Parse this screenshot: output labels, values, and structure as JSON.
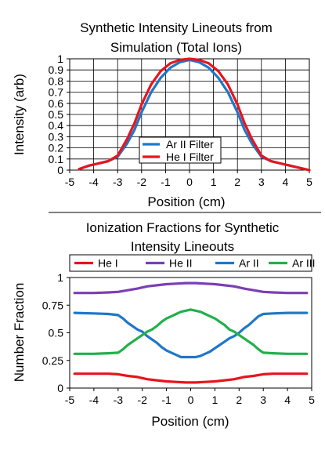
{
  "charts": [
    {
      "type": "line",
      "title_lines": [
        "Synthetic Intensity Lineouts from",
        "Simulation (Total Ions)"
      ],
      "xlabel": "Position (cm)",
      "ylabel": "Intensity (arb)",
      "xlim": [
        -5,
        5
      ],
      "ylim": [
        0,
        1
      ],
      "xticks": [
        "-5",
        "-4",
        "-3",
        "-2",
        "-1",
        "0",
        "1",
        "2",
        "3",
        "4",
        "5"
      ],
      "yticks": [
        "0",
        "0.1",
        "0.2",
        "0.3",
        "0.4",
        "0.5",
        "0.6",
        "0.7",
        "0.8",
        "0.9",
        "1"
      ],
      "grid": true,
      "legend_position": "lower-center",
      "series": [
        {
          "name": "Ar II Filter",
          "color": "#1f77c9",
          "x": [
            -4.6,
            -4.2,
            -3.8,
            -3.4,
            -3.0,
            -2.6,
            -2.3,
            -2.0,
            -1.6,
            -1.2,
            -0.8,
            -0.4,
            0.0,
            0.4,
            0.8,
            1.2,
            1.6,
            2.0,
            2.3,
            2.6,
            3.0,
            3.4,
            3.8,
            4.2,
            4.6,
            5.0
          ],
          "y": [
            0.01,
            0.04,
            0.06,
            0.08,
            0.12,
            0.24,
            0.36,
            0.52,
            0.7,
            0.83,
            0.92,
            0.97,
            0.99,
            0.97,
            0.92,
            0.83,
            0.7,
            0.52,
            0.36,
            0.24,
            0.12,
            0.08,
            0.06,
            0.04,
            0.02,
            0.0
          ]
        },
        {
          "name": "He I Filter",
          "color": "#e8141c",
          "x": [
            -4.6,
            -4.2,
            -3.8,
            -3.4,
            -3.0,
            -2.6,
            -2.3,
            -2.0,
            -1.6,
            -1.2,
            -0.8,
            -0.4,
            0.0,
            0.4,
            0.8,
            1.2,
            1.6,
            2.0,
            2.3,
            2.6,
            3.0,
            3.4,
            3.8,
            4.2,
            4.6,
            5.0
          ],
          "y": [
            0.01,
            0.04,
            0.06,
            0.08,
            0.13,
            0.28,
            0.42,
            0.59,
            0.77,
            0.89,
            0.96,
            0.99,
            1.0,
            0.99,
            0.96,
            0.89,
            0.77,
            0.59,
            0.42,
            0.28,
            0.13,
            0.08,
            0.06,
            0.04,
            0.02,
            0.0
          ]
        }
      ]
    },
    {
      "type": "line",
      "title_lines": [
        "Ionization Fractions for Synthetic",
        "Intensity Lineouts"
      ],
      "xlabel": "Position (cm)",
      "ylabel": "Number Fraction",
      "xlim": [
        -5,
        5
      ],
      "ylim": [
        0,
        1
      ],
      "xticks": [
        "-5",
        "-4",
        "-3",
        "-2",
        "-1",
        "0",
        "1",
        "2",
        "3",
        "4",
        "5"
      ],
      "yticks": [
        "0",
        "0.25",
        "0.5",
        "0.75",
        "1"
      ],
      "grid": false,
      "legend_position": "top",
      "series": [
        {
          "name": "He I",
          "color": "#e8141c",
          "x": [
            -4.8,
            -4.0,
            -3.4,
            -3.0,
            -2.6,
            -2.2,
            -1.8,
            -1.4,
            -1.0,
            -0.6,
            -0.2,
            0.2,
            0.6,
            1.0,
            1.4,
            1.8,
            2.2,
            2.6,
            3.0,
            3.4,
            4.0,
            4.8
          ],
          "y": [
            0.13,
            0.13,
            0.13,
            0.125,
            0.11,
            0.1,
            0.08,
            0.07,
            0.06,
            0.055,
            0.05,
            0.05,
            0.055,
            0.06,
            0.07,
            0.08,
            0.1,
            0.11,
            0.125,
            0.13,
            0.13,
            0.13
          ]
        },
        {
          "name": "He II",
          "color": "#7b3fb4",
          "x": [
            -4.8,
            -4.0,
            -3.4,
            -3.0,
            -2.6,
            -2.2,
            -1.8,
            -1.4,
            -1.0,
            -0.6,
            -0.2,
            0.2,
            0.6,
            1.0,
            1.4,
            1.8,
            2.2,
            2.6,
            3.0,
            3.4,
            4.0,
            4.8
          ],
          "y": [
            0.86,
            0.86,
            0.865,
            0.87,
            0.885,
            0.9,
            0.92,
            0.93,
            0.94,
            0.945,
            0.95,
            0.95,
            0.945,
            0.94,
            0.93,
            0.92,
            0.9,
            0.885,
            0.87,
            0.865,
            0.86,
            0.86
          ]
        },
        {
          "name": "Ar II",
          "color": "#1f77c9",
          "x": [
            -4.8,
            -4.0,
            -3.4,
            -3.0,
            -2.8,
            -2.6,
            -2.4,
            -2.2,
            -2.0,
            -1.8,
            -1.6,
            -1.4,
            -1.2,
            -1.0,
            -0.8,
            -0.6,
            -0.4,
            -0.2,
            0.0,
            0.2,
            0.4,
            0.6,
            0.8,
            1.0,
            1.2,
            1.4,
            1.6,
            1.8,
            2.0,
            2.2,
            2.4,
            2.6,
            2.8,
            3.0,
            3.4,
            4.0,
            4.8
          ],
          "y": [
            0.68,
            0.675,
            0.67,
            0.66,
            0.63,
            0.59,
            0.56,
            0.53,
            0.51,
            0.47,
            0.44,
            0.41,
            0.37,
            0.34,
            0.32,
            0.3,
            0.28,
            0.28,
            0.28,
            0.28,
            0.29,
            0.31,
            0.33,
            0.36,
            0.39,
            0.42,
            0.45,
            0.47,
            0.5,
            0.54,
            0.57,
            0.61,
            0.65,
            0.67,
            0.675,
            0.68,
            0.68
          ]
        },
        {
          "name": "Ar III",
          "color": "#22b04a",
          "x": [
            -4.8,
            -4.0,
            -3.4,
            -3.0,
            -2.8,
            -2.6,
            -2.4,
            -2.2,
            -2.0,
            -1.8,
            -1.6,
            -1.4,
            -1.2,
            -1.0,
            -0.8,
            -0.6,
            -0.4,
            -0.2,
            0.0,
            0.2,
            0.4,
            0.6,
            0.8,
            1.0,
            1.2,
            1.4,
            1.6,
            1.8,
            2.0,
            2.2,
            2.4,
            2.6,
            2.8,
            3.0,
            3.4,
            4.0,
            4.8
          ],
          "y": [
            0.31,
            0.31,
            0.315,
            0.32,
            0.35,
            0.39,
            0.42,
            0.45,
            0.48,
            0.51,
            0.53,
            0.56,
            0.6,
            0.63,
            0.65,
            0.67,
            0.69,
            0.7,
            0.71,
            0.7,
            0.69,
            0.67,
            0.65,
            0.63,
            0.6,
            0.57,
            0.53,
            0.51,
            0.48,
            0.45,
            0.42,
            0.39,
            0.35,
            0.32,
            0.315,
            0.31,
            0.31
          ]
        }
      ]
    }
  ]
}
